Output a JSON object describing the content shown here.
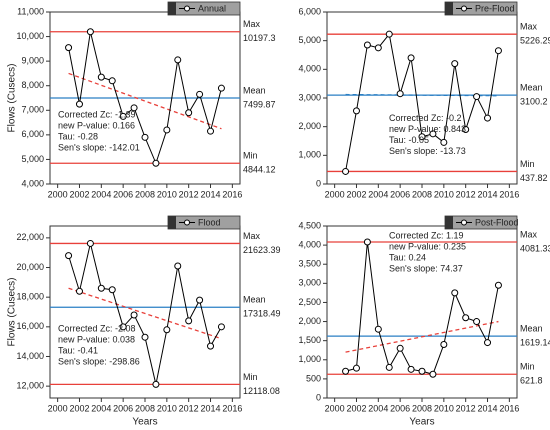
{
  "chart_data": [
    {
      "type": "line",
      "x": [
        2001,
        2002,
        2003,
        2004,
        2005,
        2006,
        2007,
        2008,
        2009,
        2010,
        2011,
        2012,
        2013,
        2014,
        2015
      ],
      "series": [
        {
          "name": "Annual",
          "color": "#000000",
          "values": [
            9550,
            7250,
            10197.3,
            8350,
            8200,
            6750,
            7100,
            5900,
            4844.12,
            6200,
            9050,
            6900,
            7650,
            6150,
            7900
          ]
        }
      ],
      "ylabel": "Flows (Cusecs)",
      "xlim": [
        1999.3,
        2016.7
      ],
      "xticks": [
        2000,
        2002,
        2004,
        2006,
        2008,
        2010,
        2012,
        2014,
        2016
      ],
      "ylim": [
        4000,
        11000
      ],
      "yticks": [
        {
          "value": 4000,
          "label": "4,000"
        },
        {
          "value": 5000,
          "label": "5,000"
        },
        {
          "value": 6000,
          "label": "6,000"
        },
        {
          "value": 7000,
          "label": "7,000"
        },
        {
          "value": 8000,
          "label": "8,000"
        },
        {
          "value": 9000,
          "label": "9,000"
        },
        {
          "value": 10000,
          "label": "10,000"
        },
        {
          "value": 11000,
          "label": "11,000"
        }
      ],
      "refs": [
        {
          "name": "Max",
          "value": 10197.3,
          "color": "#e8403a"
        },
        {
          "name": "Mean",
          "value": 7499.87,
          "color": "#2a7fc4"
        },
        {
          "name": "Min",
          "value": 4844.12,
          "color": "#e8403a"
        }
      ],
      "trend": {
        "x": [
          2001,
          2015
        ],
        "values": [
          8500,
          6250
        ],
        "color": "#e8403a"
      },
      "annotations": [
        "Corrected Zc: -1.39",
        "new P-value: 0.166",
        "Tau: -0.28",
        "Sen's slope: -142.01"
      ]
    },
    {
      "type": "line",
      "x": [
        2001,
        2002,
        2003,
        2004,
        2005,
        2006,
        2007,
        2008,
        2009,
        2010,
        2011,
        2012,
        2013,
        2014,
        2015
      ],
      "series": [
        {
          "name": "Pre-Flood",
          "color": "#000000",
          "values": [
            437.82,
            2550,
            4850,
            4750,
            5226.29,
            3150,
            4400,
            1650,
            1750,
            1450,
            4200,
            1900,
            3050,
            2300,
            4650
          ]
        }
      ],
      "xlim": [
        1999.3,
        2016.7
      ],
      "xticks": [
        2000,
        2002,
        2004,
        2006,
        2008,
        2010,
        2012,
        2014,
        2016
      ],
      "ylim": [
        0,
        6000
      ],
      "yticks": [
        0,
        {
          "value": 1000,
          "label": "1,000"
        },
        {
          "value": 2000,
          "label": "2,000"
        },
        {
          "value": 3000,
          "label": "3,000"
        },
        {
          "value": 4000,
          "label": "4,000"
        },
        {
          "value": 5000,
          "label": "5,000"
        },
        {
          "value": 6000,
          "label": "6,000"
        }
      ],
      "refs": [
        {
          "name": "Max",
          "value": 5226.29,
          "color": "#e8403a"
        },
        {
          "name": "Mean",
          "value": 3100.2,
          "color": "#2a7fc4"
        },
        {
          "name": "Min",
          "value": 437.82,
          "color": "#e8403a"
        }
      ],
      "trend": {
        "x": [
          2001,
          2015
        ],
        "values": [
          3120,
          3080
        ],
        "color": "#2a7fc4"
      },
      "annotations": [
        "Corrected Zc: -0.2",
        "new P-value: 0.843",
        "Tau: -0.05",
        "Sen's slope: -13.73"
      ]
    },
    {
      "type": "line",
      "x": [
        2001,
        2002,
        2003,
        2004,
        2005,
        2006,
        2007,
        2008,
        2009,
        2010,
        2011,
        2012,
        2013,
        2014,
        2015
      ],
      "series": [
        {
          "name": "Flood",
          "color": "#000000",
          "values": [
            20800,
            18400,
            21623.39,
            18600,
            18500,
            16000,
            16800,
            15300,
            12118.08,
            15800,
            20100,
            16400,
            17800,
            14700,
            16000
          ]
        }
      ],
      "xlabel": "Years",
      "ylabel": "Flows (Cusecs)",
      "xlim": [
        1999.3,
        2016.7
      ],
      "xticks": [
        2000,
        2002,
        2004,
        2006,
        2008,
        2010,
        2012,
        2014,
        2016
      ],
      "ylim": [
        11200,
        22800
      ],
      "yticks": [
        {
          "value": 12000,
          "label": "12,000"
        },
        {
          "value": 14000,
          "label": "14,000"
        },
        {
          "value": 16000,
          "label": "16,000"
        },
        {
          "value": 18000,
          "label": "18,000"
        },
        {
          "value": 20000,
          "label": "20,000"
        },
        {
          "value": 22000,
          "label": "22,000"
        }
      ],
      "refs": [
        {
          "name": "Max",
          "value": 21623.39,
          "color": "#e8403a"
        },
        {
          "name": "Mean",
          "value": 17318.49,
          "color": "#2a7fc4"
        },
        {
          "name": "Min",
          "value": 12118.08,
          "color": "#e8403a"
        }
      ],
      "trend": {
        "x": [
          2001,
          2015
        ],
        "values": [
          18600,
          15200
        ],
        "color": "#e8403a"
      },
      "annotations": [
        "Corrected Zc: -2.08",
        "new P-value: 0.038",
        "Tau: -0.41",
        "Sen's slope: -298.86"
      ]
    },
    {
      "type": "line",
      "x": [
        2001,
        2002,
        2003,
        2004,
        2005,
        2006,
        2007,
        2008,
        2009,
        2010,
        2011,
        2012,
        2013,
        2014,
        2015
      ],
      "series": [
        {
          "name": "Post-Flood",
          "color": "#000000",
          "values": [
            700,
            780,
            4081.33,
            1800,
            800,
            1300,
            750,
            700,
            621.8,
            1400,
            2750,
            2100,
            2000,
            1450,
            2950
          ]
        }
      ],
      "xlabel": "Years",
      "xlim": [
        1999.3,
        2016.7
      ],
      "xticks": [
        2000,
        2002,
        2004,
        2006,
        2008,
        2010,
        2012,
        2014,
        2016
      ],
      "ylim": [
        0,
        4500
      ],
      "yticks": [
        0,
        {
          "value": 500,
          "label": "500"
        },
        {
          "value": 1000,
          "label": "1,000"
        },
        {
          "value": 1500,
          "label": "1,500"
        },
        {
          "value": 2000,
          "label": "2,000"
        },
        {
          "value": 2500,
          "label": "2,500"
        },
        {
          "value": 3000,
          "label": "3,000"
        },
        {
          "value": 3500,
          "label": "3,500"
        },
        {
          "value": 4000,
          "label": "4,000"
        },
        {
          "value": 4500,
          "label": "4,500"
        }
      ],
      "refs": [
        {
          "name": "Max",
          "value": 4081.33,
          "color": "#e8403a"
        },
        {
          "name": "Mean",
          "value": 1619.14,
          "color": "#2a7fc4"
        },
        {
          "name": "Min",
          "value": 621.8,
          "color": "#e8403a"
        }
      ],
      "trend": {
        "x": [
          2001,
          2015
        ],
        "values": [
          1200,
          2000
        ],
        "color": "#e8403a"
      },
      "annotations": [
        "Corrected Zc: 1.19",
        "new P-value: 0.235",
        "Tau: 0.24",
        "Sen's slope: 74.37"
      ]
    }
  ]
}
